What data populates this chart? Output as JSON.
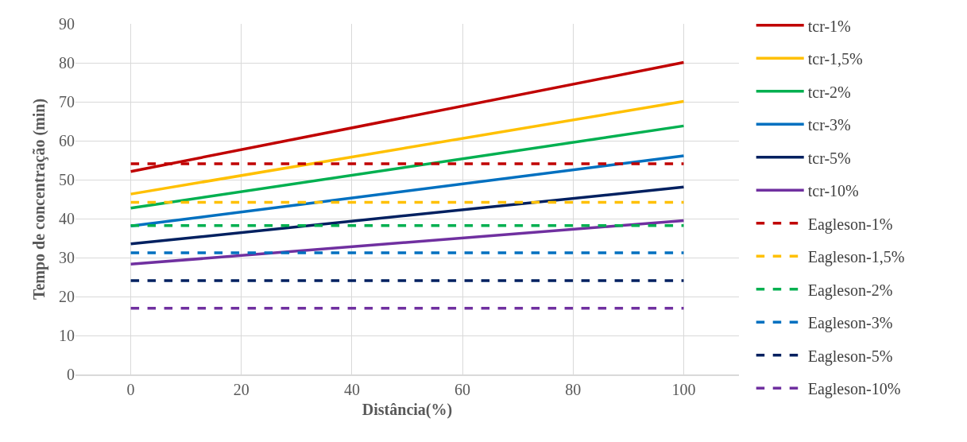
{
  "chart_data": {
    "type": "line",
    "xlabel": "Distância(%)",
    "ylabel": "Tempo de concentração (min)",
    "x": [
      0,
      100
    ],
    "xlim": [
      -10,
      110
    ],
    "xticks": [
      0,
      20,
      40,
      60,
      80,
      100
    ],
    "ylim": [
      0,
      90
    ],
    "yticks": [
      0,
      10,
      20,
      30,
      40,
      50,
      60,
      70,
      80,
      90
    ],
    "grid": true,
    "legend": "right",
    "marker": "none",
    "series": [
      {
        "name": "tcr-1%",
        "color": "#c00000",
        "line_style": "solid",
        "values": [
          52.1,
          80.1
        ]
      },
      {
        "name": "tcr-1,5%",
        "color": "#ffc000",
        "line_style": "solid",
        "values": [
          46.3,
          70.1
        ]
      },
      {
        "name": "tcr-2%",
        "color": "#00b050",
        "line_style": "solid",
        "values": [
          42.7,
          63.8
        ]
      },
      {
        "name": "tcr-3%",
        "color": "#0070c0",
        "line_style": "solid",
        "values": [
          38.1,
          56.1
        ]
      },
      {
        "name": "tcr-5%",
        "color": "#002060",
        "line_style": "solid",
        "values": [
          33.5,
          48.1
        ]
      },
      {
        "name": "tcr-10%",
        "color": "#7030a0",
        "line_style": "solid",
        "values": [
          28.3,
          39.5
        ]
      },
      {
        "name": "Eagleson-1%",
        "color": "#c00000",
        "line_style": "dashed",
        "values": [
          54.1,
          54.1
        ]
      },
      {
        "name": "Eagleson-1,5%",
        "color": "#ffc000",
        "line_style": "dashed",
        "values": [
          44.2,
          44.2
        ]
      },
      {
        "name": "Eagleson-2%",
        "color": "#00b050",
        "line_style": "dashed",
        "values": [
          38.2,
          38.2
        ]
      },
      {
        "name": "Eagleson-3%",
        "color": "#0070c0",
        "line_style": "dashed",
        "values": [
          31.2,
          31.2
        ]
      },
      {
        "name": "Eagleson-5%",
        "color": "#002060",
        "line_style": "dashed",
        "values": [
          24.1,
          24.1
        ]
      },
      {
        "name": "Eagleson-10%",
        "color": "#7030a0",
        "line_style": "dashed",
        "values": [
          17.0,
          17.0
        ]
      }
    ]
  }
}
